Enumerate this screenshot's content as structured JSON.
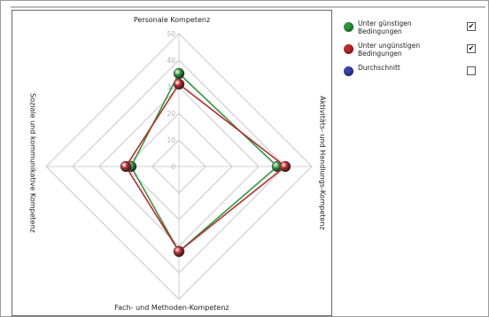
{
  "chart_data": {
    "type": "radar",
    "axes": [
      "Personale Kompetenz",
      "Aktivitäts- und Handlungs-Kompetenz",
      "Fach- und Methoden-Kompetenz",
      "Soziale und kommunikative Kompetenz"
    ],
    "tick_labels": [
      "0",
      "10",
      "20",
      "30",
      "40",
      "50"
    ],
    "rmax": 50,
    "series": [
      {
        "name": "Unter günstigen Bedingungen",
        "values": [
          35,
          37,
          32,
          18
        ],
        "color": "#2e9a3a",
        "checked": true
      },
      {
        "name": "Unter ungünstigen Bedingungen",
        "values": [
          31,
          40,
          32,
          20
        ],
        "color": "#c0282d",
        "checked": true
      },
      {
        "name": "Durchschnitt",
        "values": [],
        "color": "#3a3fb0",
        "checked": false
      }
    ]
  },
  "legend": {
    "items": [
      {
        "label": "Unter günstigen Bedingungen",
        "check": "✔"
      },
      {
        "label": "Unter ungünstigen Bedingungen",
        "check": "✔"
      },
      {
        "label": "Durchschnitt",
        "check": ""
      }
    ]
  }
}
